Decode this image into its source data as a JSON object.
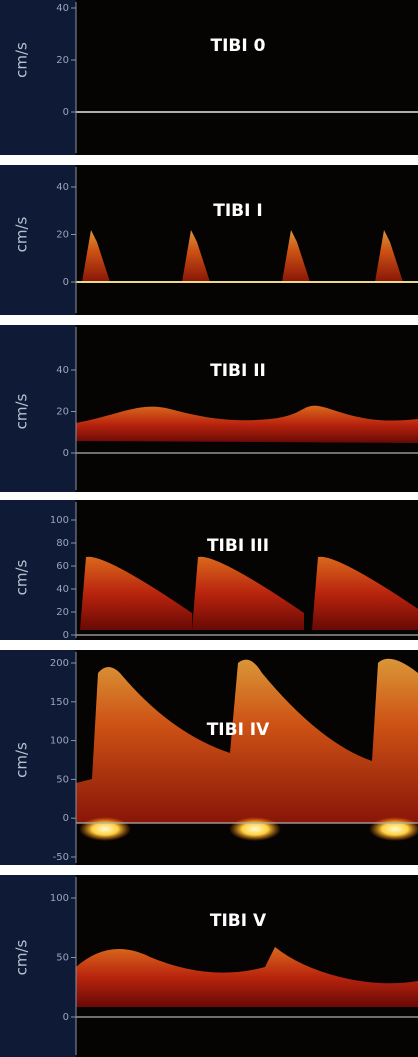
{
  "panels": [
    {
      "title": "TIBI 0",
      "unit": "cm/s",
      "ticks": [
        "40",
        "20",
        "0"
      ]
    },
    {
      "title": "TIBI I",
      "unit": "cm/s",
      "ticks": [
        "40",
        "20",
        "0"
      ]
    },
    {
      "title": "TIBI II",
      "unit": "cm/s",
      "ticks": [
        "40",
        "20",
        "0"
      ]
    },
    {
      "title": "TIBI III",
      "unit": "cm/s",
      "ticks": [
        "100",
        "80",
        "60",
        "40",
        "20",
        "0"
      ]
    },
    {
      "title": "TIBI IV",
      "unit": "cm/s",
      "ticks": [
        "200",
        "150",
        "100",
        "50",
        "0",
        "-50"
      ]
    },
    {
      "title": "TIBI V",
      "unit": "cm/s",
      "ticks": [
        "100",
        "50",
        "0"
      ]
    }
  ]
}
